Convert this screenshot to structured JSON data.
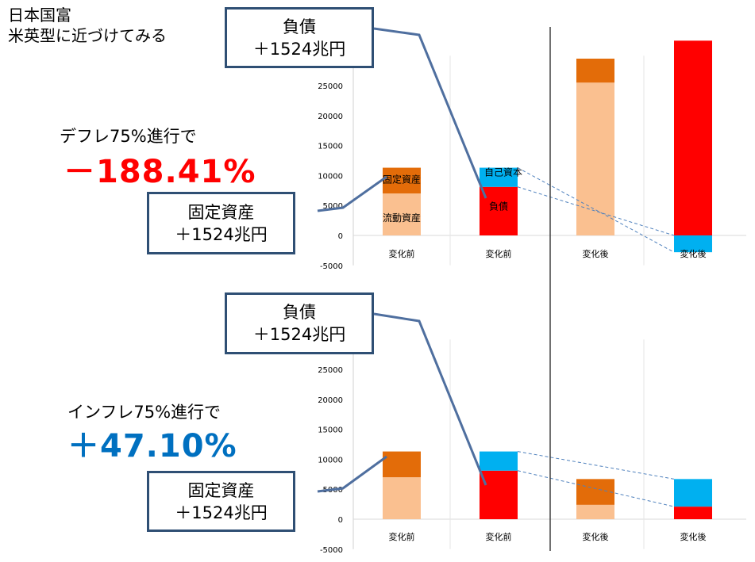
{
  "title": {
    "line1": "日本国富",
    "line2": "米英型に近づけてみる"
  },
  "scenarios": [
    {
      "label": "デフレ75%進行で",
      "result": "－188.41%",
      "result_color": "#ff0000",
      "callout_liab": {
        "line1": "負債",
        "line2": "＋1524兆円"
      },
      "callout_asset": {
        "line1": "固定資産",
        "line2": "＋1524兆円"
      }
    },
    {
      "label": "インフレ75%進行で",
      "result": "＋47.10%",
      "result_color": "#0070c0",
      "callout_liab": {
        "line1": "負債",
        "line2": "＋1524兆円"
      },
      "callout_asset": {
        "line1": "固定資産",
        "line2": "＋1524兆円"
      }
    }
  ],
  "colors": {
    "current_assets": "#fac090",
    "fixed_assets": "#e36c09",
    "liabilities": "#ff0000",
    "equity": "#00b0f0",
    "callout_border": "#2f4f74",
    "leader": "#4f6f9f",
    "dashed": "#4f81bd"
  },
  "chart_data": [
    {
      "type": "bar",
      "stacked": true,
      "categories": [
        "変化前",
        "変化前",
        "変化後",
        "変化後"
      ],
      "ylim": [
        -5000,
        30000
      ],
      "yticks": [
        -5000,
        0,
        5000,
        10000,
        15000,
        20000,
        25000
      ],
      "series": [
        {
          "name": "流動資産",
          "values": [
            7000,
            0,
            25500,
            0
          ]
        },
        {
          "name": "固定資産",
          "values": [
            4300,
            0,
            4000,
            0
          ]
        },
        {
          "name": "負債",
          "values": [
            0,
            8100,
            0,
            32500
          ]
        },
        {
          "name": "自己資本",
          "values": [
            0,
            3200,
            0,
            -2800
          ]
        }
      ],
      "annotations": [
        "固定資産",
        "流動資産",
        "自己資本",
        "負債"
      ]
    },
    {
      "type": "bar",
      "stacked": true,
      "categories": [
        "変化前",
        "変化前",
        "変化後",
        "変化後"
      ],
      "ylim": [
        -5000,
        30000
      ],
      "yticks": [
        -5000,
        0,
        5000,
        10000,
        15000,
        20000,
        25000
      ],
      "series": [
        {
          "name": "流動資産",
          "values": [
            7000,
            0,
            2400,
            0
          ]
        },
        {
          "name": "固定資産",
          "values": [
            4300,
            0,
            4300,
            0
          ]
        },
        {
          "name": "負債",
          "values": [
            0,
            8100,
            0,
            2100
          ]
        },
        {
          "name": "自己資本",
          "values": [
            0,
            3200,
            0,
            4600
          ]
        }
      ],
      "annotations": []
    }
  ]
}
